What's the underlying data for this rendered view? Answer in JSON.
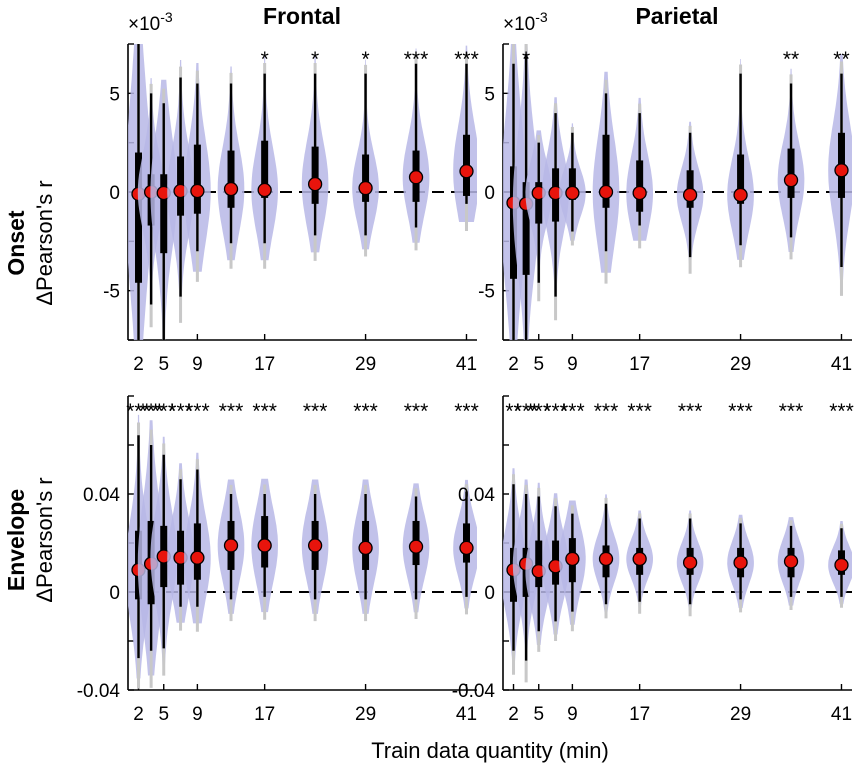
{
  "figure": {
    "col_titles": [
      "Frontal",
      "Parietal"
    ],
    "row_titles": [
      "Onset",
      "Envelope"
    ],
    "ylabel": "ΔPearson's r",
    "xlabel": "Train data quantity (min)",
    "onset_multiplier_base": "×10",
    "onset_multiplier_exp": "-3"
  },
  "chart_data": [
    {
      "id": "onset-frontal",
      "type": "violin",
      "title": "Frontal",
      "row": "Onset",
      "xlabel": "Train data quantity (min)",
      "ylabel": "ΔPearson's r (×10^-3)",
      "ylim": [
        -7.5,
        7.5
      ],
      "yticks": [
        -5,
        0,
        5
      ],
      "ytick_labels": [
        "-5",
        "0",
        "5"
      ],
      "x": [
        2,
        3.5,
        5,
        7,
        9,
        13,
        17,
        23,
        29,
        35,
        41
      ],
      "xticks": [
        2,
        5,
        9,
        17,
        29,
        41
      ],
      "xtick_labels": [
        "2",
        "5",
        "9",
        "17",
        "29",
        "41"
      ],
      "medians": [
        -0.1,
        0.0,
        -0.05,
        0.05,
        0.05,
        0.15,
        0.1,
        0.4,
        0.2,
        0.75,
        1.05
      ],
      "q1": [
        -4.6,
        -1.7,
        -3.1,
        -1.2,
        -1.1,
        -0.8,
        -0.3,
        -0.6,
        -0.5,
        -0.5,
        -0.2
      ],
      "q3": [
        2.0,
        0.9,
        0.9,
        1.8,
        2.4,
        2.1,
        2.6,
        2.3,
        1.9,
        2.1,
        2.9
      ],
      "whisker_low": [
        -7.5,
        -5.7,
        -7.5,
        -5.3,
        -3.0,
        -2.6,
        -2.6,
        -2.2,
        -2.2,
        -1.8,
        -0.6
      ],
      "whisker_high": [
        7.5,
        5.0,
        4.5,
        5.8,
        5.5,
        5.5,
        6.0,
        6.0,
        6.0,
        6.5,
        6.5
      ],
      "sig": [
        "",
        "",
        "",
        "",
        "",
        "",
        "*",
        "*",
        "*",
        "***",
        "***"
      ],
      "zero_line": 0
    },
    {
      "id": "onset-parietal",
      "type": "violin",
      "title": "Parietal",
      "row": "Onset",
      "xlabel": "Train data quantity (min)",
      "ylabel": "ΔPearson's r (×10^-3)",
      "ylim": [
        -7.5,
        7.5
      ],
      "yticks": [
        -5,
        0,
        5
      ],
      "ytick_labels": [
        "-5",
        "0",
        "5"
      ],
      "x": [
        2,
        3.5,
        5,
        7,
        9,
        13,
        17,
        23,
        29,
        35,
        41
      ],
      "xticks": [
        2,
        5,
        9,
        17,
        29,
        41
      ],
      "xtick_labels": [
        "2",
        "5",
        "9",
        "17",
        "29",
        "41"
      ],
      "medians": [
        -0.55,
        -0.6,
        -0.05,
        -0.05,
        -0.05,
        0.0,
        -0.05,
        -0.15,
        -0.15,
        0.6,
        1.1
      ],
      "q1": [
        -4.4,
        -4.2,
        -1.6,
        -1.5,
        -0.4,
        -0.8,
        -1.0,
        -0.8,
        -0.6,
        -0.3,
        -0.3
      ],
      "q3": [
        1.3,
        0.5,
        0.5,
        1.2,
        1.2,
        2.9,
        1.6,
        1.1,
        1.9,
        2.2,
        3.0
      ],
      "whisker_low": [
        -7.5,
        -7.5,
        -4.6,
        -5.3,
        -2.0,
        -3.0,
        -1.7,
        -3.3,
        -2.7,
        -2.3,
        -3.8
      ],
      "whisker_high": [
        6.5,
        7.0,
        2.5,
        4.0,
        3.0,
        5.0,
        4.0,
        3.0,
        6.0,
        5.5,
        6.0
      ],
      "sig": [
        "",
        "*",
        "",
        "",
        "",
        "",
        "",
        "",
        "",
        "**",
        "**"
      ],
      "zero_line": 0
    },
    {
      "id": "envelope-frontal",
      "type": "violin",
      "title": "Frontal",
      "row": "Envelope",
      "xlabel": "Train data quantity (min)",
      "ylabel": "ΔPearson's r",
      "ylim": [
        -0.04,
        0.08
      ],
      "yticks": [
        -0.04,
        0,
        0.04
      ],
      "ytick_labels": [
        "-0.04",
        "0",
        "0.04"
      ],
      "x": [
        2,
        3.5,
        5,
        7,
        9,
        13,
        17,
        23,
        29,
        35,
        41
      ],
      "xticks": [
        2,
        5,
        9,
        17,
        29,
        41
      ],
      "xtick_labels": [
        "2",
        "5",
        "9",
        "17",
        "29",
        "41"
      ],
      "medians": [
        0.009,
        0.0115,
        0.0145,
        0.014,
        0.014,
        0.019,
        0.019,
        0.019,
        0.018,
        0.0185,
        0.018
      ],
      "q1": [
        -0.003,
        -0.005,
        0.002,
        0.003,
        0.005,
        0.009,
        0.01,
        0.009,
        0.009,
        0.011,
        0.012
      ],
      "q3": [
        0.025,
        0.029,
        0.027,
        0.025,
        0.028,
        0.029,
        0.031,
        0.029,
        0.029,
        0.029,
        0.028
      ],
      "whisker_low": [
        -0.027,
        -0.024,
        -0.023,
        -0.006,
        -0.006,
        -0.003,
        -0.002,
        -0.003,
        -0.003,
        -0.003,
        -0.002
      ],
      "whisker_high": [
        0.064,
        0.06,
        0.056,
        0.046,
        0.05,
        0.04,
        0.04,
        0.04,
        0.04,
        0.039,
        0.041
      ],
      "sig": [
        "***",
        "***",
        "***",
        "***",
        "***",
        "***",
        "***",
        "***",
        "***",
        "***",
        "***"
      ],
      "zero_line": 0
    },
    {
      "id": "envelope-parietal",
      "type": "violin",
      "title": "Parietal",
      "row": "Envelope",
      "xlabel": "Train data quantity (min)",
      "ylabel": "ΔPearson's r",
      "ylim": [
        -0.04,
        0.08
      ],
      "yticks": [
        -0.04,
        0,
        0.04
      ],
      "ytick_labels": [
        "-0.04",
        "0",
        "0.04"
      ],
      "x": [
        2,
        3.5,
        5,
        7,
        9,
        13,
        17,
        23,
        29,
        35,
        41
      ],
      "xticks": [
        2,
        5,
        9,
        17,
        29,
        41
      ],
      "xtick_labels": [
        "2",
        "5",
        "9",
        "17",
        "29",
        "41"
      ],
      "medians": [
        0.009,
        0.0115,
        0.0085,
        0.0105,
        0.0135,
        0.0135,
        0.0135,
        0.012,
        0.012,
        0.0125,
        0.011
      ],
      "q1": [
        -0.004,
        -0.002,
        0.002,
        0.003,
        0.004,
        0.006,
        0.007,
        0.007,
        0.006,
        0.006,
        0.007
      ],
      "q3": [
        0.018,
        0.018,
        0.021,
        0.021,
        0.022,
        0.019,
        0.018,
        0.018,
        0.018,
        0.018,
        0.017
      ],
      "whisker_low": [
        -0.024,
        -0.028,
        -0.016,
        -0.012,
        -0.008,
        -0.005,
        -0.004,
        -0.005,
        -0.003,
        -0.002,
        -0.002
      ],
      "whisker_high": [
        0.044,
        0.04,
        0.039,
        0.035,
        0.032,
        0.036,
        0.03,
        0.03,
        0.028,
        0.027,
        0.026
      ],
      "sig": [
        "**",
        "***",
        "***",
        "***",
        "***",
        "***",
        "***",
        "***",
        "***",
        "***",
        "***"
      ],
      "zero_line": 0
    }
  ]
}
